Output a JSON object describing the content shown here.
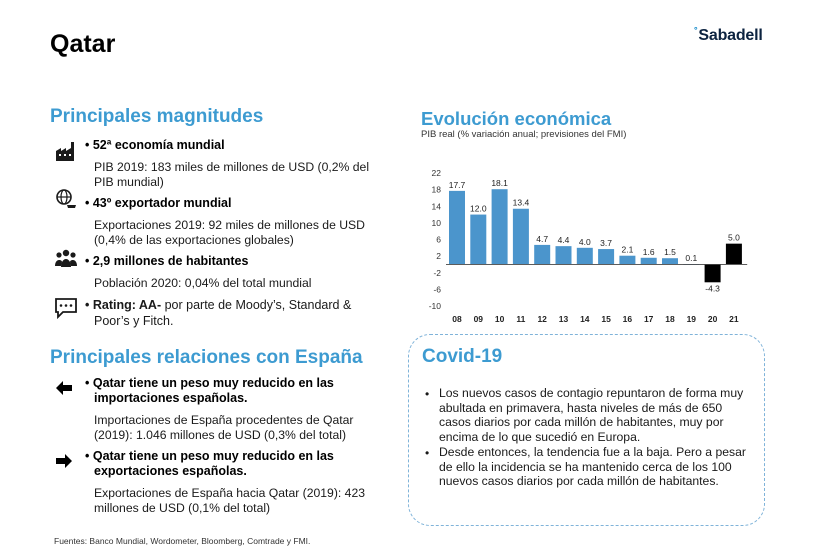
{
  "header": {
    "title": "Qatar",
    "logo_mark": "°",
    "logo_text": "Sabadell"
  },
  "left": {
    "magnitudes_title": "Principales magnitudes",
    "items": [
      {
        "icon": "factory-icon",
        "bullet": "• 52ª economía mundial",
        "line1": "PIB 2019: 183 miles de millones de USD (0,2% del",
        "line2": "PIB mundial)"
      },
      {
        "icon": "globe-cart-icon",
        "bullet": "• 43º exportador mundial",
        "line1": "Exportaciones 2019: 92 miles de millones de USD",
        "line2": "(0,4% de las exportaciones globales)"
      },
      {
        "icon": "people-icon",
        "bullet": "• 2,9 millones de habitantes",
        "line1": "Población 2020: 0,04% del total mundial",
        "line2": ""
      }
    ],
    "rating_prefix": "• Rating: AA-",
    "rating_rest": " por parte de Moody’s, Standard &",
    "rating_line2": "Poor’s y Fitch.",
    "relations_title": "Principales relaciones con España",
    "relations": [
      {
        "icon": "arrow-left-icon",
        "bullet_l1": "• Qatar tiene un peso muy reducido en las",
        "bullet_l2": "importaciones españolas.",
        "line1": "Importaciones de España procedentes de Qatar",
        "line2": "(2019): 1.046 millones de USD (0,3% del total)"
      },
      {
        "icon": "arrow-right-icon",
        "bullet_l1": "• Qatar tiene un peso muy reducido en las",
        "bullet_l2": "exportaciones españolas.",
        "line1": "Exportaciones de España hacia Qatar (2019): 423",
        "line2": "millones de USD (0,1% del total)"
      }
    ]
  },
  "chart_section": {
    "title": "Evolución económica",
    "subtitle": "PIB real (% variación anual; previsiones del FMI)"
  },
  "chart_data": {
    "type": "bar",
    "categories": [
      "08",
      "09",
      "10",
      "11",
      "12",
      "13",
      "14",
      "15",
      "16",
      "17",
      "18",
      "19",
      "20",
      "21"
    ],
    "values": [
      17.7,
      12.0,
      18.1,
      13.4,
      4.7,
      4.4,
      4.0,
      3.7,
      2.1,
      1.6,
      1.5,
      0.1,
      -4.3,
      5.0
    ],
    "value_labels": [
      "17.7",
      "12.0",
      "18.1",
      "13.4",
      "4.7",
      "4.4",
      "4.0",
      "3.7",
      "2.1",
      "1.6",
      "1.5",
      "0.1",
      "-4.3",
      "5.0"
    ],
    "forecast_categories": [
      "20",
      "21"
    ],
    "ylim": [
      -10,
      22
    ],
    "yticks": [
      22,
      18,
      14,
      10,
      6,
      2,
      -2,
      -6,
      -10
    ],
    "ytick_labels": [
      "22",
      "18",
      "14",
      "10",
      "6",
      "2",
      "-2",
      "-6",
      "-10"
    ],
    "grid": false,
    "colors": {
      "actual": "#4b95cc",
      "forecast": "#000000"
    }
  },
  "covid": {
    "title": "Covid-19",
    "b1": [
      "Los nuevos casos de contagio repuntaron de forma muy",
      "abultada en primavera, hasta niveles de más de 650",
      "casos diarios por cada millón de habitantes, muy por",
      "encima de lo que sucedió en Europa."
    ],
    "b2": [
      "Desde entonces, la tendencia fue a la baja. Pero a pesar",
      "de ello la incidencia se ha mantenido cerca de los 100",
      "nuevos casos diarios por cada millón de habitantes."
    ],
    "bullet_char": "•"
  },
  "footer": {
    "source": "Fuentes: Banco Mundial, Wordometer, Bloomberg, Comtrade y FMI."
  }
}
